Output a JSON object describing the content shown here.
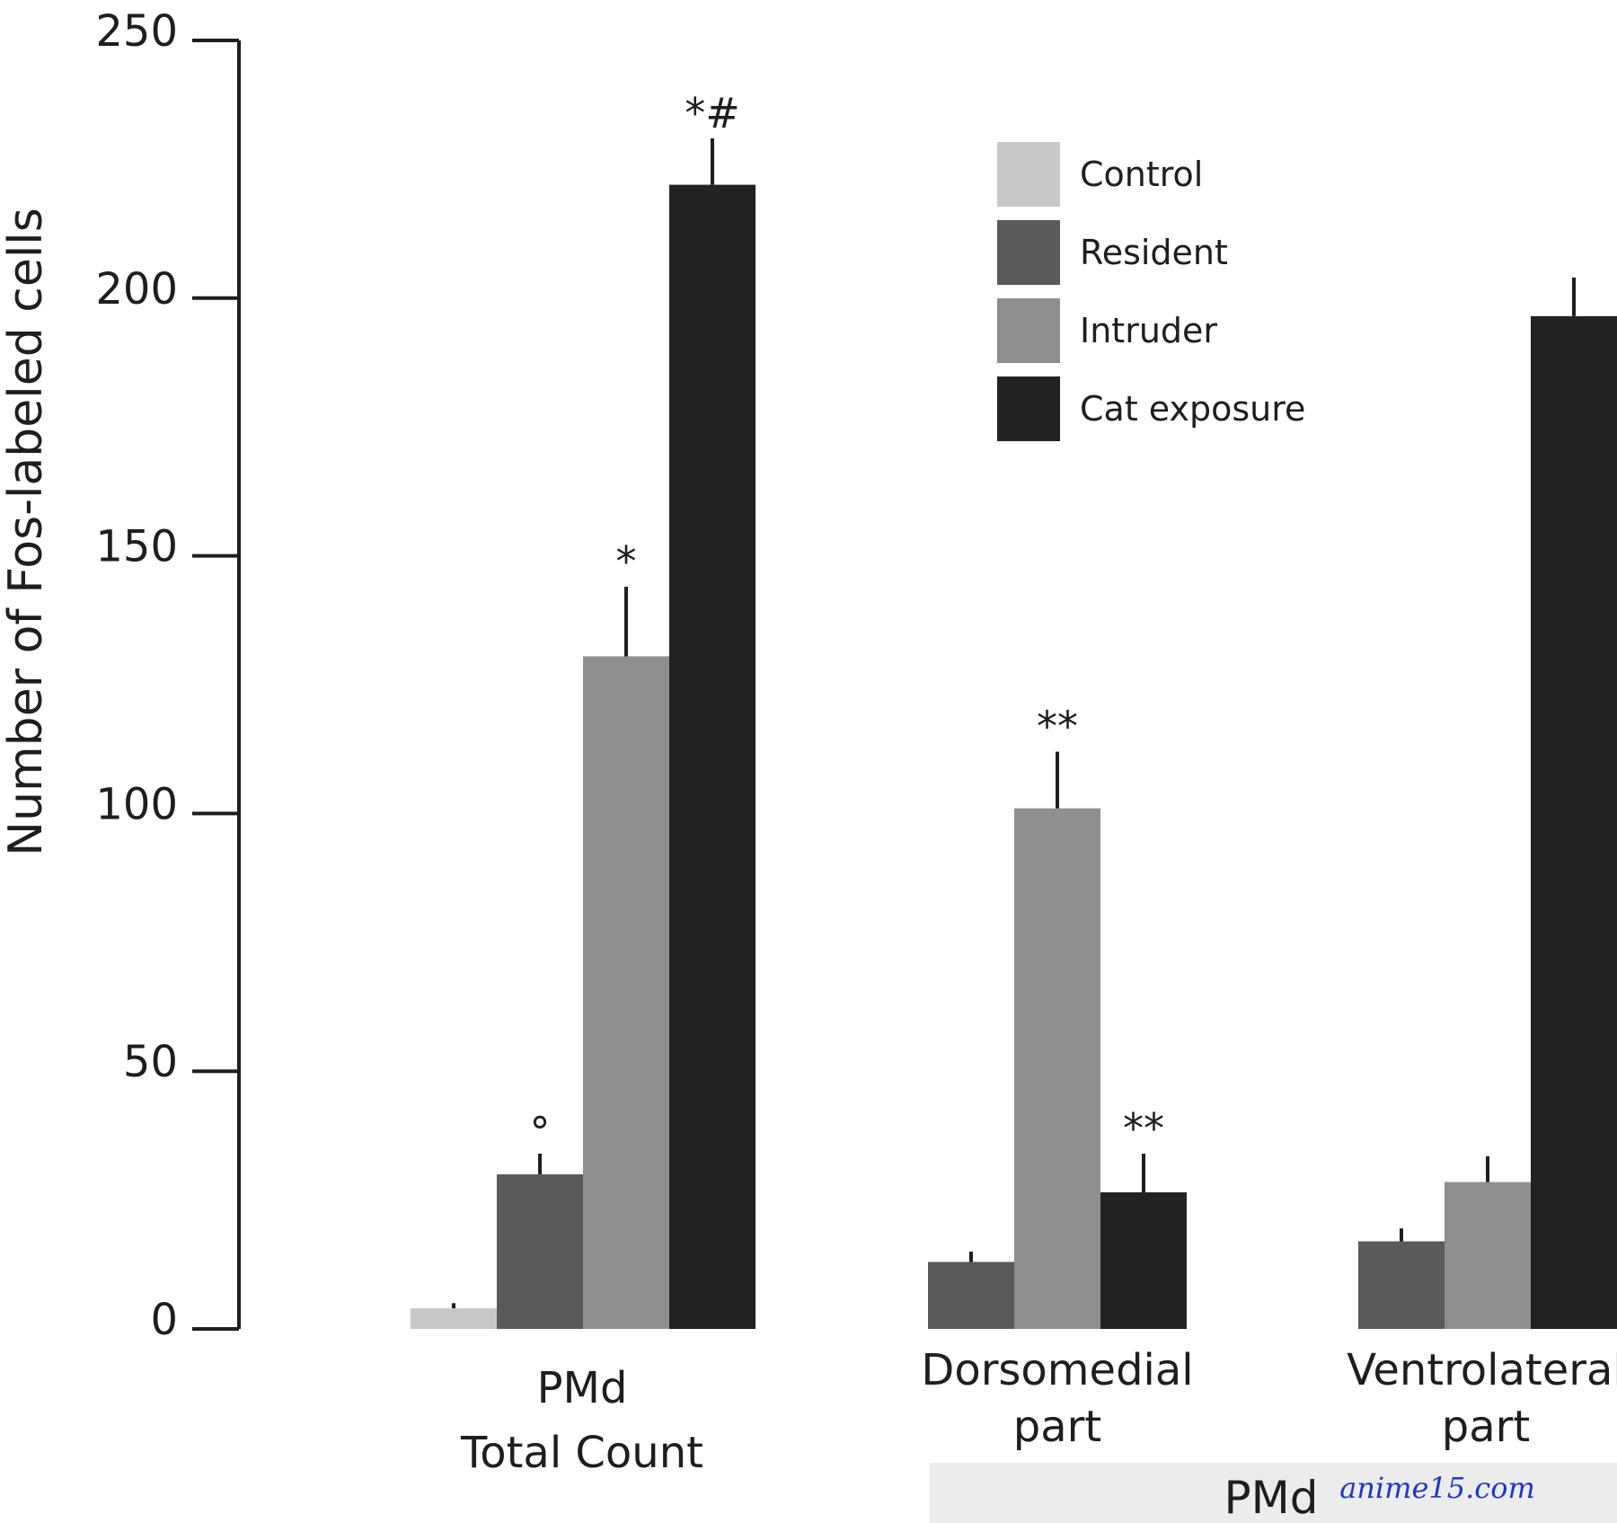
{
  "chart_data": {
    "type": "bar",
    "ylabel": "Number of Fos-labeled cells",
    "ylim": [
      0,
      250
    ],
    "yticks": [
      {
        "value": 0,
        "label": "0"
      },
      {
        "value": 50,
        "label": "50"
      },
      {
        "value": 100,
        "label": "100"
      },
      {
        "value": 150,
        "label": "150"
      },
      {
        "value": 200,
        "label": "200"
      },
      {
        "value": 250,
        "label": "250"
      }
    ],
    "grid": false,
    "legend_position": "top-right",
    "series_meta": [
      {
        "name": "Control",
        "color": "#c8c8c8"
      },
      {
        "name": "Resident",
        "color": "#5a5a5a"
      },
      {
        "name": "Intruder",
        "color": "#8e8e8e"
      },
      {
        "name": "Cat exposure",
        "color": "#222222"
      }
    ],
    "groups": [
      {
        "label_lines": [
          "PMd",
          "Total Count"
        ],
        "bars": [
          {
            "series": "Control",
            "value": 4,
            "error": 1,
            "annotation": ""
          },
          {
            "series": "Resident",
            "value": 30,
            "error": 4,
            "annotation": "°"
          },
          {
            "series": "Intruder",
            "value": 130.5,
            "error": 13.5,
            "annotation": "*"
          },
          {
            "series": "Cat exposure",
            "value": 222,
            "error": 9,
            "annotation": "*#"
          }
        ]
      },
      {
        "label_lines": [
          "Dorsomedial",
          "part"
        ],
        "bars": [
          {
            "series": "Resident",
            "value": 13,
            "error": 2,
            "annotation": ""
          },
          {
            "series": "Intruder",
            "value": 101,
            "error": 11,
            "annotation": "**"
          },
          {
            "series": "Cat exposure",
            "value": 26.5,
            "error": 7.5,
            "annotation": "**"
          }
        ]
      },
      {
        "label_lines": [
          "Ventrolateral",
          "part"
        ],
        "bars": [
          {
            "series": "Resident",
            "value": 17,
            "error": 2.5,
            "annotation": ""
          },
          {
            "series": "Intruder",
            "value": 28.5,
            "error": 5,
            "annotation": ""
          },
          {
            "series": "Cat exposure",
            "value": 196.5,
            "error": 7.5,
            "annotation": ""
          }
        ]
      }
    ],
    "band_label": "PMd"
  },
  "watermark": "anime15.com"
}
